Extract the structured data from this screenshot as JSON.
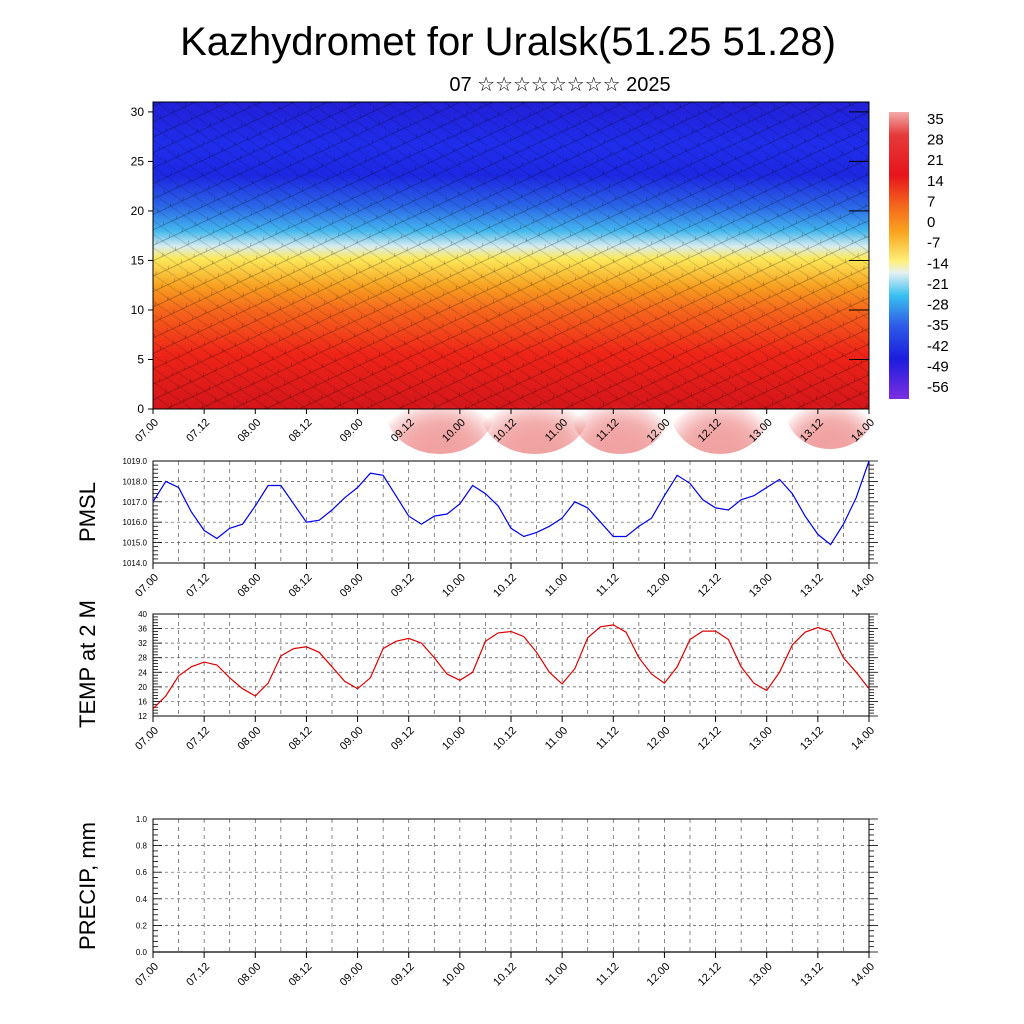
{
  "title": "Kazhydromet for Uralsk(51.25 51.28)",
  "subtitle": "07 ☆☆☆☆☆☆☆☆ 2025",
  "chart_data": [
    {
      "type": "heatmap",
      "panel": "cross-section",
      "yticks": [
        "0",
        "5",
        "10",
        "15",
        "20",
        "25",
        "30"
      ],
      "ylim": [
        0,
        31
      ],
      "xticks": [
        "07.00",
        "07.12",
        "08.00",
        "08.12",
        "09.00",
        "09.12",
        "10.00",
        "10.12",
        "11.00",
        "11.12",
        "12.00",
        "12.12",
        "13.00",
        "13.12",
        "14.00"
      ],
      "colorbar_labels": [
        "35",
        "28",
        "21",
        "14",
        "7",
        "0",
        "-7",
        "-14",
        "-21",
        "-28",
        "-35",
        "-42",
        "-49",
        "-56"
      ],
      "colors": {
        "warm": "#e8221c",
        "orange": "#f7941d",
        "yellow": "#fce94f",
        "cyan": "#29abe2",
        "blue": "#1c2ee0",
        "violet": "#7b2fe0"
      }
    },
    {
      "type": "line",
      "ylabel": "PMSL",
      "ylim": [
        1014,
        1019
      ],
      "yticks": [
        "1014.0",
        "1015.0",
        "1016.0",
        "1017.0",
        "1018.0",
        "1019.0"
      ],
      "xticks": [
        "07.00",
        "07.12",
        "08.00",
        "08.12",
        "09.00",
        "09.12",
        "10.00",
        "10.12",
        "11.00",
        "11.12",
        "12.00",
        "12.12",
        "13.00",
        "13.12",
        "14.00"
      ],
      "color": "#0000ee",
      "x": [
        0,
        3,
        6,
        9,
        12,
        15,
        18,
        21,
        24,
        27,
        30,
        33,
        36,
        39,
        42,
        45,
        48,
        51,
        54,
        57,
        60,
        63,
        66,
        69,
        72,
        75,
        78,
        81,
        84,
        87,
        90,
        93,
        96,
        99,
        102,
        105,
        108,
        111,
        114,
        117,
        120,
        123,
        126,
        129,
        132,
        135,
        138,
        141,
        144,
        147,
        150,
        153,
        156,
        159,
        162,
        165,
        168
      ],
      "values": [
        1017.0,
        1018.0,
        1017.7,
        1016.5,
        1015.6,
        1015.2,
        1015.7,
        1015.9,
        1016.8,
        1017.8,
        1017.8,
        1016.9,
        1016.0,
        1016.1,
        1016.6,
        1017.2,
        1017.7,
        1018.4,
        1018.3,
        1017.3,
        1016.3,
        1015.9,
        1016.3,
        1016.4,
        1016.9,
        1017.8,
        1017.4,
        1016.8,
        1015.7,
        1015.3,
        1015.5,
        1015.8,
        1016.2,
        1017.0,
        1016.7,
        1016.0,
        1015.3,
        1015.3,
        1015.8,
        1016.2,
        1017.3,
        1018.3,
        1017.9,
        1017.1,
        1016.7,
        1016.6,
        1017.1,
        1017.3,
        1017.7,
        1018.1,
        1017.4,
        1016.3,
        1015.4,
        1014.9,
        1015.9,
        1017.2,
        1019.0
      ]
    },
    {
      "type": "line",
      "ylabel": "TEMP at 2 M",
      "ylim": [
        12,
        40
      ],
      "yticks": [
        "12",
        "16",
        "20",
        "24",
        "28",
        "32",
        "36",
        "40"
      ],
      "xticks": [
        "07.00",
        "07.12",
        "08.00",
        "08.12",
        "09.00",
        "09.12",
        "10.00",
        "10.12",
        "11.00",
        "11.12",
        "12.00",
        "12.12",
        "13.00",
        "13.12",
        "14.00"
      ],
      "color": "#dd0000",
      "x": [
        0,
        3,
        6,
        9,
        12,
        15,
        18,
        21,
        24,
        27,
        30,
        33,
        36,
        39,
        42,
        45,
        48,
        51,
        54,
        57,
        60,
        63,
        66,
        69,
        72,
        75,
        78,
        81,
        84,
        87,
        90,
        93,
        96,
        99,
        102,
        105,
        108,
        111,
        114,
        117,
        120,
        123,
        126,
        129,
        132,
        135,
        138,
        141,
        144,
        147,
        150,
        153,
        156,
        159,
        162,
        165,
        168
      ],
      "values": [
        14.0,
        17.5,
        23.0,
        25.5,
        26.8,
        26.0,
        22.5,
        19.5,
        17.5,
        21.0,
        28.5,
        30.5,
        31.0,
        29.5,
        25.5,
        21.5,
        19.5,
        22.5,
        30.5,
        32.5,
        33.3,
        32.0,
        28.0,
        23.5,
        21.8,
        24.0,
        32.5,
        34.8,
        35.2,
        33.8,
        29.5,
        24.0,
        20.8,
        25.0,
        33.5,
        36.5,
        37.0,
        35.0,
        28.0,
        23.5,
        21.0,
        25.5,
        33.0,
        35.3,
        35.3,
        33.0,
        25.5,
        21.0,
        19.0,
        24.0,
        31.5,
        35.0,
        36.3,
        35.2,
        28.0,
        24.0,
        19.5
      ]
    },
    {
      "type": "line",
      "ylabel": "PRECIP, mm",
      "ylim": [
        0,
        1
      ],
      "yticks": [
        "0.0",
        "0.2",
        "0.4",
        "0.6",
        "0.8",
        "1.0"
      ],
      "xticks": [
        "07.00",
        "07.12",
        "08.00",
        "08.12",
        "09.00",
        "09.12",
        "10.00",
        "10.12",
        "11.00",
        "11.12",
        "12.00",
        "12.12",
        "13.00",
        "13.12",
        "14.00"
      ],
      "color": "#000000",
      "x": [
        0,
        168
      ],
      "values": [
        0,
        0
      ]
    }
  ]
}
